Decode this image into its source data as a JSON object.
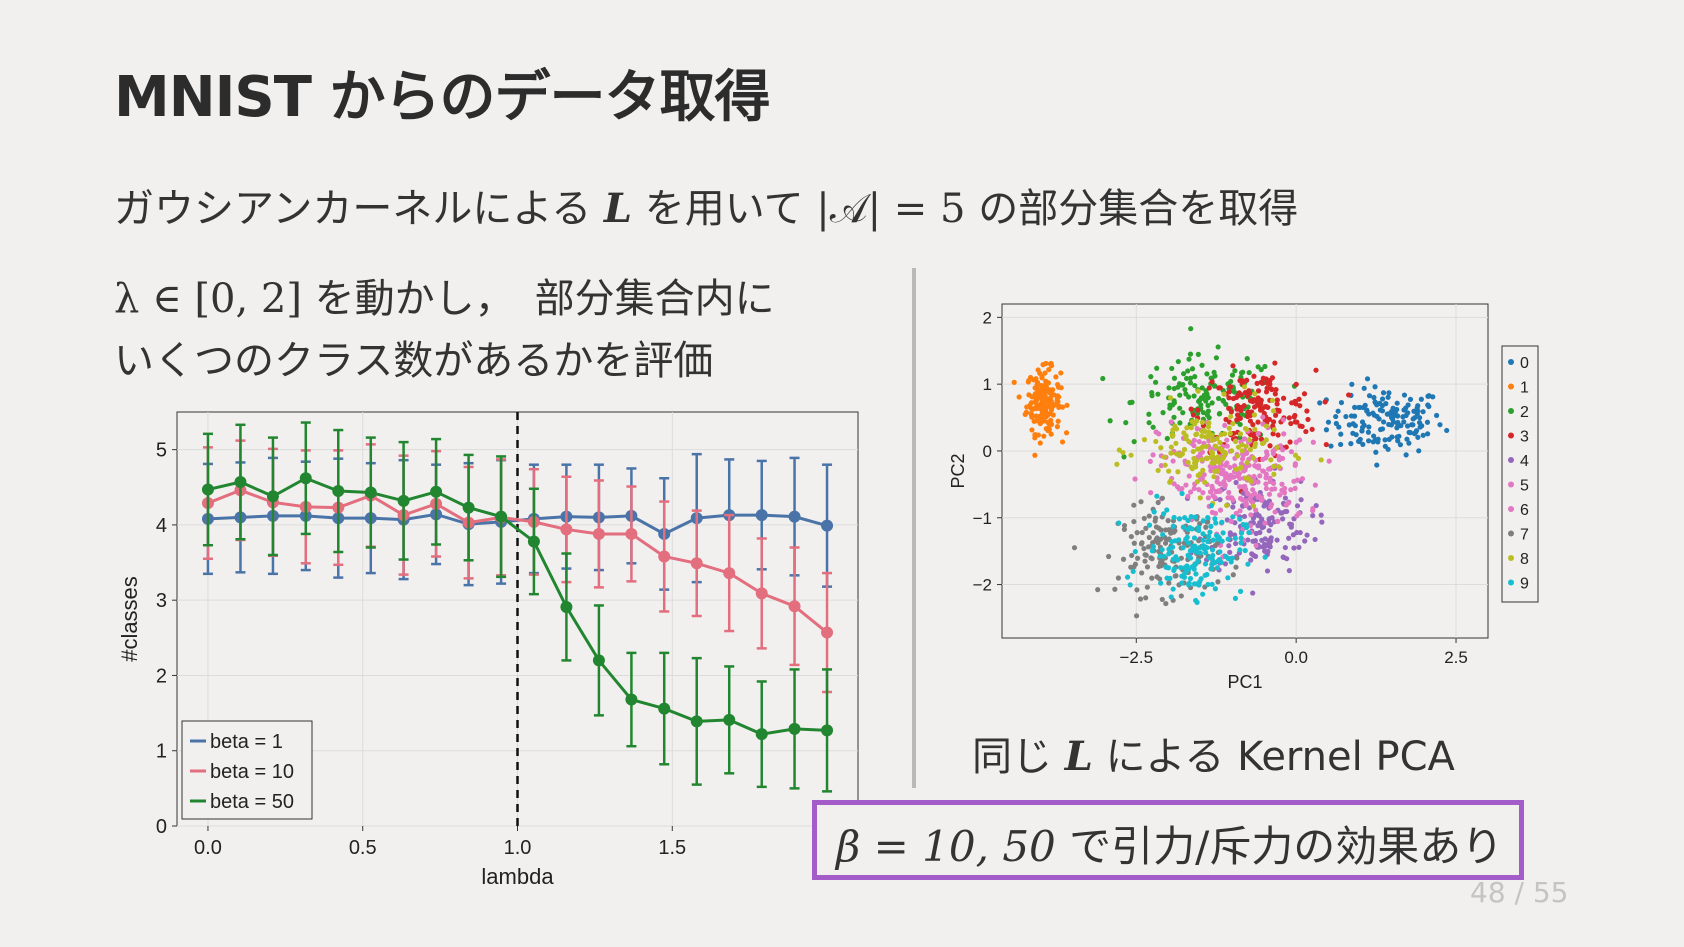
{
  "slide": {
    "title": "MNIST からのデータ取得",
    "line1_pre": "ガウシアンカーネルによる",
    "line1_L": "L",
    "line1_mid": "を用いて",
    "line1_math": "|𝒜| = 5",
    "line1_post": "の部分集合を取得",
    "left_math": "λ ∈ [0, 2]",
    "left_line1_post": "を動かし，　部分集合内に",
    "left_line2": "いくつのクラス数があるかを評価",
    "right_caption_pre": "同じ",
    "right_caption_L": "L",
    "right_caption_post": "による Kernel PCA",
    "highlight_math": "β = 10, 50",
    "highlight_text": "で引力/斥力の効果あり",
    "page_number": "48 / 55"
  },
  "chart_data": [
    {
      "type": "line",
      "xlabel": "lambda",
      "ylabel": "#classes",
      "xlim": [
        -0.1,
        2.1
      ],
      "ylim": [
        0,
        5.5
      ],
      "xticks": [
        0.0,
        0.5,
        1.0,
        1.5
      ],
      "xtick_labels": [
        "0.0",
        "0.5",
        "1.0",
        "1.5"
      ],
      "yticks": [
        0,
        1,
        2,
        3,
        4,
        5
      ],
      "ytick_labels": [
        "0",
        "1",
        "2",
        "3",
        "4",
        "5"
      ],
      "vline_x": 1.0,
      "legend": "bottom-left",
      "x": [
        0.0,
        0.105,
        0.21,
        0.316,
        0.421,
        0.526,
        0.632,
        0.737,
        0.842,
        0.947,
        1.053,
        1.158,
        1.263,
        1.368,
        1.474,
        1.579,
        1.684,
        1.789,
        1.895,
        2.0
      ],
      "series": [
        {
          "name": "beta = 1",
          "color": "#4a74a8",
          "values": [
            4.08,
            4.1,
            4.12,
            4.12,
            4.09,
            4.09,
            4.07,
            4.14,
            4.01,
            4.04,
            4.08,
            4.11,
            4.1,
            4.12,
            3.88,
            4.09,
            4.13,
            4.13,
            4.11,
            3.99
          ],
          "err": [
            0.73,
            0.73,
            0.77,
            0.72,
            0.79,
            0.73,
            0.79,
            0.66,
            0.81,
            0.82,
            0.72,
            0.69,
            0.7,
            0.63,
            0.74,
            0.85,
            0.74,
            0.72,
            0.78,
            0.81
          ]
        },
        {
          "name": "beta = 10",
          "color": "#e26e7e",
          "values": [
            4.29,
            4.46,
            4.3,
            4.24,
            4.23,
            4.39,
            4.13,
            4.28,
            4.03,
            4.1,
            4.04,
            3.94,
            3.88,
            3.88,
            3.58,
            3.49,
            3.36,
            3.09,
            2.92,
            2.57
          ],
          "err": [
            0.74,
            0.66,
            0.71,
            0.75,
            0.76,
            0.68,
            0.79,
            0.7,
            0.74,
            0.77,
            0.7,
            0.7,
            0.71,
            0.63,
            0.73,
            0.7,
            0.77,
            0.73,
            0.78,
            0.79
          ]
        },
        {
          "name": "beta = 50",
          "color": "#228630",
          "values": [
            4.47,
            4.57,
            4.38,
            4.62,
            4.45,
            4.43,
            4.32,
            4.44,
            4.23,
            4.11,
            3.78,
            2.91,
            2.2,
            1.68,
            1.56,
            1.39,
            1.41,
            1.22,
            1.29,
            1.27
          ],
          "err": [
            0.74,
            0.76,
            0.78,
            0.74,
            0.81,
            0.73,
            0.78,
            0.7,
            0.7,
            0.8,
            0.7,
            0.71,
            0.73,
            0.62,
            0.74,
            0.84,
            0.71,
            0.7,
            0.79,
            0.81
          ]
        }
      ]
    },
    {
      "type": "scatter",
      "xlabel": "PC1",
      "ylabel": "PC2",
      "xlim": [
        -4.6,
        3.0
      ],
      "ylim": [
        -2.8,
        2.2
      ],
      "xticks": [
        -2.5,
        0.0,
        2.5
      ],
      "xtick_labels": [
        "−2.5",
        "0.0",
        "2.5"
      ],
      "yticks": [
        2,
        1,
        0,
        -1,
        -2
      ],
      "ytick_labels": [
        "2",
        "1",
        "0",
        "−1",
        "−2"
      ],
      "legend": "right",
      "classes": [
        {
          "label": "0",
          "color": "#1f77b4",
          "center": [
            1.4,
            0.45
          ],
          "spread": [
            0.75,
            0.42
          ],
          "n": 150
        },
        {
          "label": "1",
          "color": "#ff7f0e",
          "center": [
            -3.95,
            0.75
          ],
          "spread": [
            0.22,
            0.4
          ],
          "n": 170
        },
        {
          "label": "2",
          "color": "#2ca02c",
          "center": [
            -1.4,
            0.75
          ],
          "spread": [
            0.95,
            0.55
          ],
          "n": 150
        },
        {
          "label": "3",
          "color": "#d62728",
          "center": [
            -0.6,
            0.6
          ],
          "spread": [
            0.75,
            0.5
          ],
          "n": 160
        },
        {
          "label": "4",
          "color": "#9467bd",
          "center": [
            -0.6,
            -1.1
          ],
          "spread": [
            0.7,
            0.6
          ],
          "n": 150
        },
        {
          "label": "5",
          "color": "#e377c2",
          "center": [
            -1.0,
            -0.2
          ],
          "spread": [
            0.95,
            0.55
          ],
          "n": 140
        },
        {
          "label": "6",
          "color": "#e377c2",
          "center": [
            -0.9,
            -0.55
          ],
          "spread": [
            0.9,
            0.55
          ],
          "n": 140
        },
        {
          "label": "7",
          "color": "#7f7f7f",
          "center": [
            -2.0,
            -1.5
          ],
          "spread": [
            0.65,
            0.55
          ],
          "n": 150
        },
        {
          "label": "8",
          "color": "#bcbd22",
          "center": [
            -1.3,
            0.0
          ],
          "spread": [
            0.95,
            0.55
          ],
          "n": 150
        },
        {
          "label": "9",
          "color": "#17becf",
          "center": [
            -1.6,
            -1.5
          ],
          "spread": [
            0.65,
            0.55
          ],
          "n": 160
        }
      ]
    }
  ]
}
